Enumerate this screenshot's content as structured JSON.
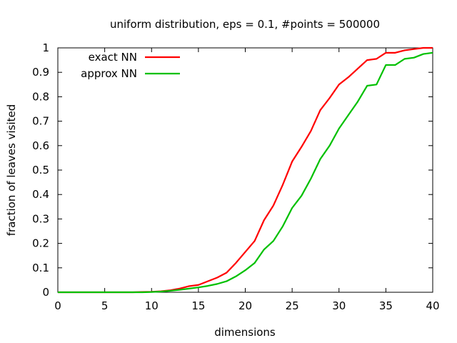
{
  "chart_data": {
    "type": "line",
    "title": "uniform distribution, eps = 0.1, #points = 500000",
    "xlabel": "dimensions",
    "ylabel": "fraction of leaves visited",
    "xlim": [
      0,
      40
    ],
    "ylim": [
      0,
      1
    ],
    "x_ticks": [
      "0",
      "5",
      "10",
      "15",
      "20",
      "25",
      "30",
      "35",
      "40"
    ],
    "y_ticks": [
      "0",
      "0.1",
      "0.2",
      "0.3",
      "0.4",
      "0.5",
      "0.6",
      "0.7",
      "0.8",
      "0.9",
      "1"
    ],
    "grid": false,
    "legend_position": "top-left",
    "series": [
      {
        "name": "exact NN",
        "color": "#ff0000",
        "x": [
          0,
          8,
          9,
          10,
          11,
          12,
          13,
          14,
          15,
          16,
          17,
          18,
          19,
          20,
          21,
          22,
          23,
          24,
          25,
          26,
          27,
          28,
          29,
          30,
          31,
          32,
          33,
          34,
          35,
          36,
          37,
          38,
          39,
          40
        ],
        "y": [
          0,
          0,
          0.001,
          0.002,
          0.004,
          0.008,
          0.015,
          0.025,
          0.03,
          0.045,
          0.06,
          0.08,
          0.12,
          0.165,
          0.21,
          0.295,
          0.355,
          0.44,
          0.535,
          0.595,
          0.66,
          0.745,
          0.795,
          0.85,
          0.88,
          0.915,
          0.95,
          0.955,
          0.98,
          0.98,
          0.99,
          0.995,
          1.0,
          1.0
        ]
      },
      {
        "name": "approx NN",
        "color": "#00c000",
        "x": [
          0,
          9,
          10,
          11,
          12,
          13,
          14,
          15,
          16,
          17,
          18,
          19,
          20,
          21,
          22,
          23,
          24,
          25,
          26,
          27,
          28,
          29,
          30,
          31,
          32,
          33,
          34,
          35,
          36,
          37,
          38,
          39,
          40
        ],
        "y": [
          0,
          0,
          0.001,
          0.003,
          0.006,
          0.01,
          0.015,
          0.02,
          0.026,
          0.034,
          0.045,
          0.065,
          0.09,
          0.12,
          0.175,
          0.21,
          0.27,
          0.345,
          0.395,
          0.465,
          0.545,
          0.6,
          0.67,
          0.725,
          0.78,
          0.845,
          0.85,
          0.93,
          0.93,
          0.955,
          0.96,
          0.975,
          0.98
        ]
      }
    ]
  }
}
